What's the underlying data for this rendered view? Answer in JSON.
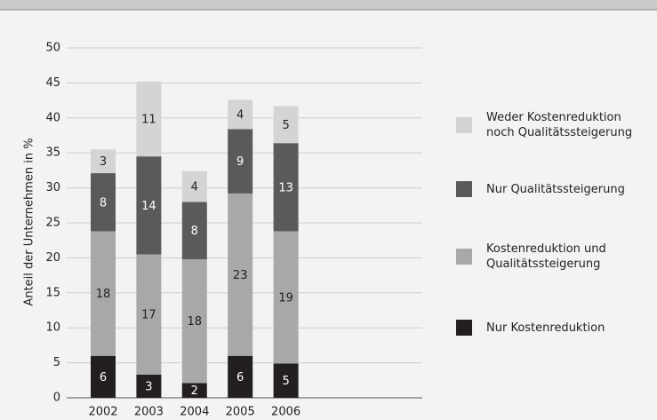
{
  "chart_data": {
    "type": "stacked_bar",
    "ylabel": "Anteil der Unternehmen in %",
    "categories": [
      "2002",
      "2003",
      "2004",
      "2005",
      "2006"
    ],
    "series": [
      {
        "name": "Nur Kostenreduktion",
        "color": "#231f20",
        "values": [
          6,
          3.3,
          2.1,
          6,
          4.9
        ],
        "value_labels": [
          "6",
          "3",
          "2",
          "6",
          "5"
        ]
      },
      {
        "name": "Kostenreduktion und Qualitätssteigerung",
        "color": "#a8a8a8",
        "values": [
          17.8,
          17.2,
          17.7,
          23.2,
          18.9
        ],
        "value_labels": [
          "18",
          "17",
          "18",
          "23",
          "19"
        ]
      },
      {
        "name": "Nur Qualitätssteigerung",
        "color": "#5a5a5a",
        "values": [
          8.3,
          14,
          8.2,
          9.2,
          12.6
        ],
        "value_labels": [
          "8",
          "14",
          "8",
          "9",
          "13"
        ]
      },
      {
        "name": "Weder Kostenreduktion noch Qualitätssteigerung",
        "color": "#d4d4d4",
        "values": [
          3.4,
          10.7,
          4.4,
          4.2,
          5.3
        ],
        "value_labels": [
          "3",
          "11",
          "4",
          "4",
          "5"
        ]
      }
    ],
    "ylim": [
      0,
      50
    ],
    "yticks": [
      0,
      5,
      10,
      15,
      20,
      25,
      30,
      35,
      40,
      45,
      50
    ],
    "grid": true,
    "legend": "right"
  }
}
